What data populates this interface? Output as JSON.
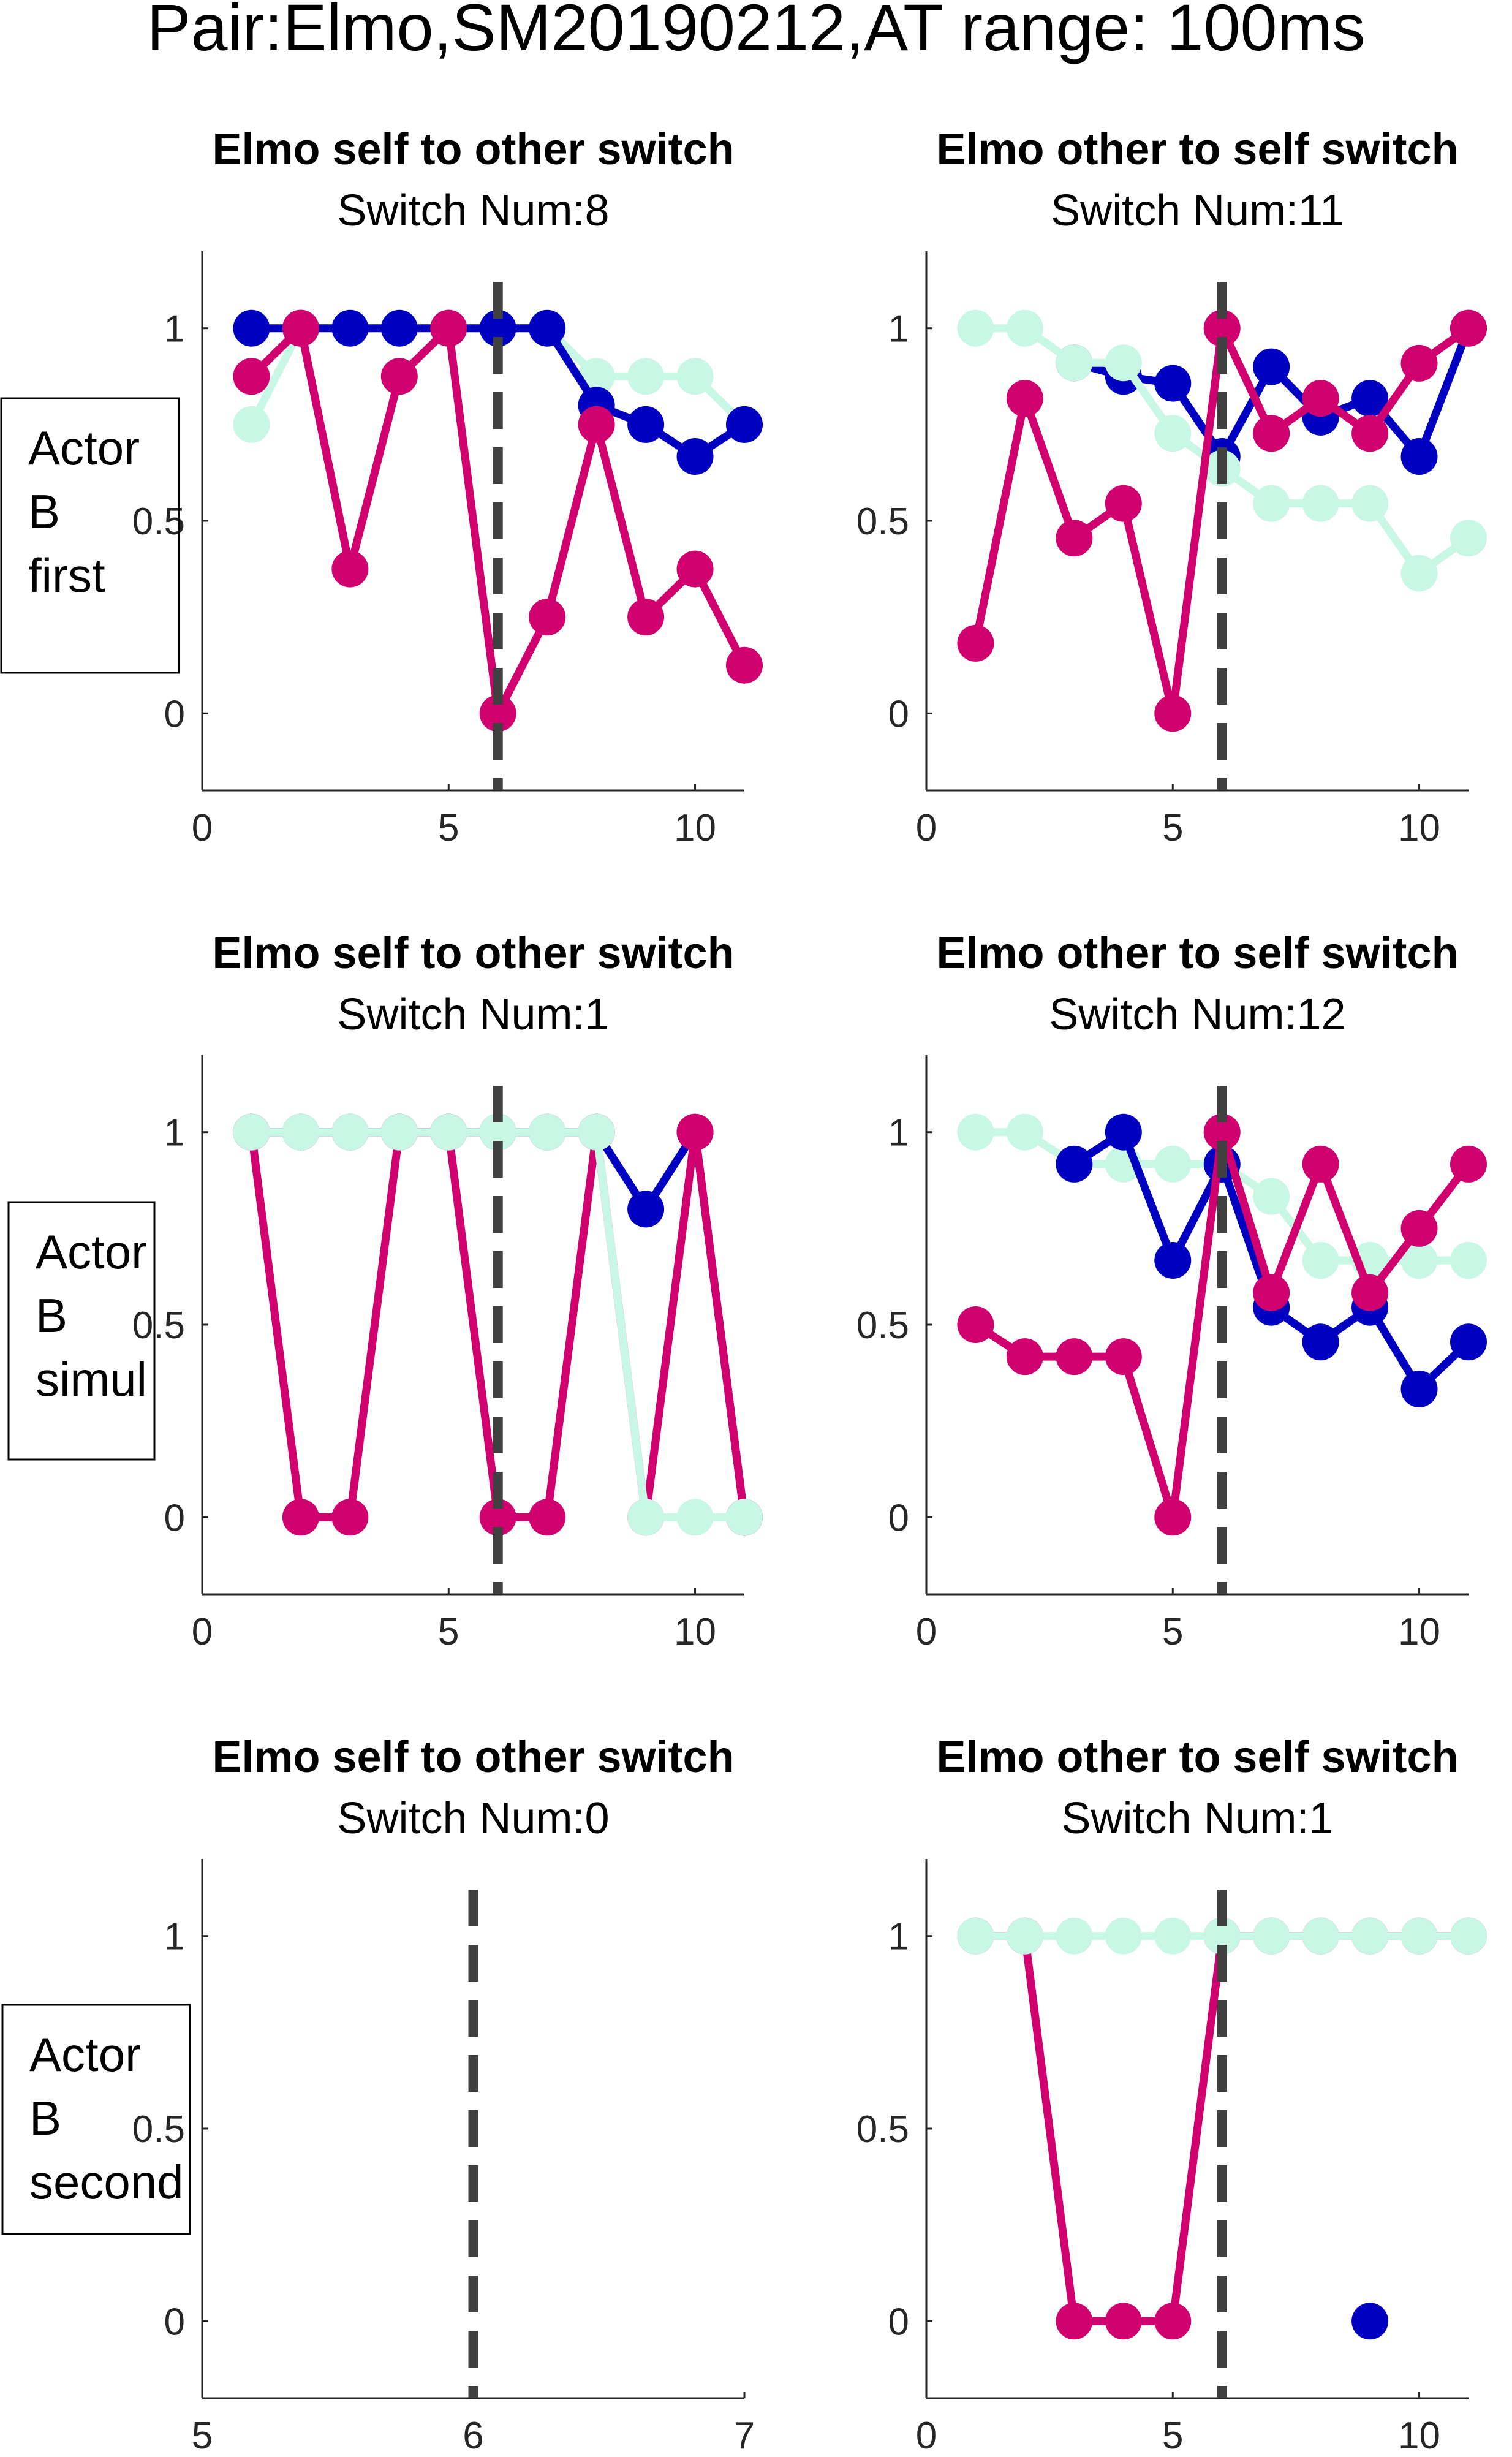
{
  "figure_title": "Pair:Elmo,SM20190212,AT range: 100ms",
  "colors": {
    "magenta": "#D0006E",
    "blue": "#0000C0",
    "mint": "#C8F7E6",
    "dashed": "#404040"
  },
  "row_labels": [
    [
      "Actor",
      "B",
      "first"
    ],
    [
      "Actor",
      "B",
      "simul"
    ],
    [
      "Actor",
      "B",
      "second"
    ]
  ],
  "chart_data": [
    {
      "type": "line",
      "title": "Elmo self to other switch",
      "subtitle": "Switch Num:8",
      "xlim": [
        0,
        11
      ],
      "ylim": [
        -0.2,
        1.2
      ],
      "xticks": [
        0,
        5,
        10
      ],
      "yticks": [
        0,
        0.5,
        1
      ],
      "xtick_labels": [
        "0",
        "5",
        "10"
      ],
      "ytick_labels": [
        "0",
        "0.5",
        "1"
      ],
      "vline": 6,
      "series": [
        {
          "color": "mint",
          "x": [
            1,
            2,
            3,
            4,
            5,
            6,
            7,
            8,
            9,
            10,
            11
          ],
          "y": [
            0.75,
            1,
            1,
            1,
            1,
            1,
            1,
            0.875,
            0.875,
            0.875,
            0.75
          ]
        },
        {
          "color": "blue",
          "x": [
            1,
            2,
            3,
            4,
            5,
            6,
            7,
            8,
            9,
            10,
            11
          ],
          "y": [
            1,
            1,
            1,
            1,
            1,
            1,
            1,
            0.8,
            0.75,
            0.667,
            0.75
          ]
        },
        {
          "color": "magenta",
          "x": [
            1,
            2,
            3,
            4,
            5,
            6,
            7,
            8,
            9,
            10,
            11
          ],
          "y": [
            0.875,
            1,
            0.375,
            0.875,
            1,
            0,
            0.25,
            0.75,
            0.25,
            0.375,
            0.125
          ]
        }
      ]
    },
    {
      "type": "line",
      "title": "Elmo other to self switch",
      "subtitle": "Switch Num:11",
      "xlim": [
        0,
        11
      ],
      "ylim": [
        -0.2,
        1.2
      ],
      "xticks": [
        0,
        5,
        10
      ],
      "yticks": [
        0,
        0.5,
        1
      ],
      "xtick_labels": [
        "0",
        "5",
        "10"
      ],
      "ytick_labels": [
        "0",
        "0.5",
        "1"
      ],
      "vline": 6,
      "series": [
        {
          "color": "blue",
          "x": [
            3,
            4,
            5,
            6,
            7,
            8,
            9,
            10,
            11
          ],
          "y": [
            0.91,
            0.875,
            0.857,
            0.667,
            0.9,
            0.769,
            0.818,
            0.667,
            1
          ]
        },
        {
          "color": "mint",
          "x": [
            1,
            2,
            3,
            4,
            5,
            6,
            7,
            8,
            9,
            10,
            11
          ],
          "y": [
            1,
            1,
            0.91,
            0.91,
            0.727,
            0.636,
            0.545,
            0.545,
            0.545,
            0.364,
            0.455
          ]
        },
        {
          "color": "magenta",
          "x": [
            1,
            2,
            3,
            4,
            5,
            6,
            7,
            8,
            9,
            10,
            11
          ],
          "y": [
            0.182,
            0.818,
            0.455,
            0.545,
            0,
            1,
            0.727,
            0.818,
            0.727,
            0.909,
            1
          ]
        }
      ]
    },
    {
      "type": "line",
      "title": "Elmo self to other switch",
      "subtitle": "Switch Num:1",
      "xlim": [
        0,
        11
      ],
      "ylim": [
        -0.2,
        1.2
      ],
      "xticks": [
        0,
        5,
        10
      ],
      "yticks": [
        0,
        0.5,
        1
      ],
      "xtick_labels": [
        "0",
        "5",
        "10"
      ],
      "ytick_labels": [
        "0",
        "0.5",
        "1"
      ],
      "vline": 6,
      "series": [
        {
          "color": "blue",
          "x": [
            1,
            2,
            3,
            4,
            5,
            6,
            7,
            8,
            9,
            10,
            11
          ],
          "y": [
            1,
            1,
            1,
            1,
            1,
            1,
            1,
            1,
            0.8,
            1,
            0
          ]
        },
        {
          "color": "magenta",
          "x": [
            1,
            2,
            3,
            4,
            5,
            6,
            7,
            8,
            9,
            10,
            11
          ],
          "y": [
            1,
            0,
            0,
            1,
            1,
            0,
            0,
            1,
            0,
            1,
            0
          ]
        },
        {
          "color": "mint",
          "x": [
            1,
            2,
            3,
            4,
            5,
            6,
            7,
            8,
            9,
            10,
            11
          ],
          "y": [
            1,
            1,
            1,
            1,
            1,
            1,
            1,
            1,
            0,
            0,
            0
          ]
        }
      ]
    },
    {
      "type": "line",
      "title": "Elmo other to self switch",
      "subtitle": "Switch Num:12",
      "xlim": [
        0,
        11
      ],
      "ylim": [
        -0.2,
        1.2
      ],
      "xticks": [
        0,
        5,
        10
      ],
      "yticks": [
        0,
        0.5,
        1
      ],
      "xtick_labels": [
        "0",
        "5",
        "10"
      ],
      "ytick_labels": [
        "0",
        "0.5",
        "1"
      ],
      "vline": 6,
      "series": [
        {
          "color": "mint",
          "x": [
            1,
            2,
            3,
            4,
            5,
            6,
            7,
            8,
            9,
            10,
            11
          ],
          "y": [
            1,
            1,
            0.917,
            0.917,
            0.917,
            0.917,
            0.833,
            0.667,
            0.667,
            0.667,
            0.667
          ]
        },
        {
          "color": "blue",
          "x": [
            3,
            4,
            5,
            6,
            7,
            8,
            9,
            10,
            11
          ],
          "y": [
            0.917,
            1,
            0.667,
            0.917,
            0.545,
            0.455,
            0.545,
            0.333,
            0.455
          ]
        },
        {
          "color": "magenta",
          "x": [
            1,
            2,
            3,
            4,
            5,
            6,
            7,
            8,
            9,
            10,
            11
          ],
          "y": [
            0.5,
            0.417,
            0.417,
            0.417,
            0,
            1,
            0.583,
            0.917,
            0.583,
            0.75,
            0.917
          ]
        }
      ]
    },
    {
      "type": "line",
      "title": "Elmo self to other switch",
      "subtitle": "Switch Num:0",
      "xlim": [
        5,
        7
      ],
      "ylim": [
        -0.2,
        1.2
      ],
      "xticks": [
        5,
        6,
        7
      ],
      "yticks": [
        0,
        0.5,
        1
      ],
      "xtick_labels": [
        "5",
        "6",
        "7"
      ],
      "ytick_labels": [
        "0",
        "0.5",
        "1"
      ],
      "vline": 6,
      "series": []
    },
    {
      "type": "line",
      "title": "Elmo other to self switch",
      "subtitle": "Switch Num:1",
      "xlim": [
        0,
        11
      ],
      "ylim": [
        -0.2,
        1.2
      ],
      "xticks": [
        0,
        5,
        10
      ],
      "yticks": [
        0,
        0.5,
        1
      ],
      "xtick_labels": [
        "0",
        "5",
        "10"
      ],
      "ytick_labels": [
        "0",
        "0.5",
        "1"
      ],
      "vline": 6,
      "series": [
        {
          "color": "magenta",
          "x": [
            1,
            2,
            3,
            4,
            5,
            6,
            7,
            8,
            9,
            10,
            11
          ],
          "y": [
            1,
            1,
            0,
            0,
            0,
            1,
            1,
            1,
            1,
            1,
            1
          ]
        },
        {
          "color": "mint",
          "x": [
            1,
            2,
            3,
            4,
            5,
            6,
            7,
            8,
            9,
            10,
            11
          ],
          "y": [
            1,
            1,
            1,
            1,
            1,
            1,
            1,
            1,
            1,
            1,
            1
          ]
        },
        {
          "color": "blue",
          "x": [
            9
          ],
          "y": [
            0
          ]
        }
      ]
    }
  ]
}
